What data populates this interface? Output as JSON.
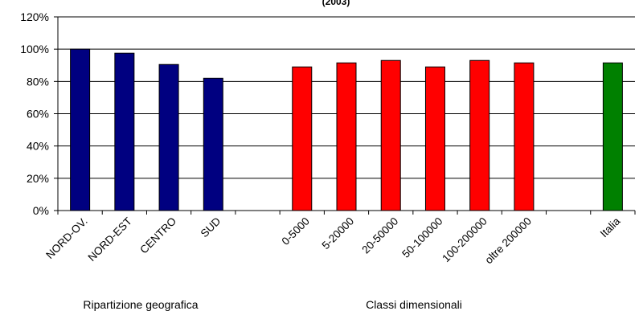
{
  "chart_data": {
    "type": "bar",
    "title": "(2003)",
    "ylim": [
      0,
      120
    ],
    "yticks": [
      "0%",
      "20%",
      "40%",
      "60%",
      "80%",
      "100%",
      "120%"
    ],
    "grid": true,
    "categories": [
      "NORD-OV.",
      "NORD-EST",
      "CENTRO",
      "SUD",
      "",
      "0-5000",
      "5-20000",
      "20-50000",
      "50-100000",
      "100-200000",
      "oltre 200000",
      "",
      "Italia"
    ],
    "values": [
      100,
      97.5,
      90.5,
      82,
      null,
      89,
      91.5,
      93,
      89,
      93,
      91.5,
      null,
      91.5
    ],
    "bar_colors": [
      "#000080",
      "#000080",
      "#000080",
      "#000080",
      null,
      "#ff0000",
      "#ff0000",
      "#ff0000",
      "#ff0000",
      "#ff0000",
      "#ff0000",
      null,
      "#008000"
    ],
    "group_labels": [
      "Ripartizione geografica",
      "Classi dimensionali"
    ]
  }
}
